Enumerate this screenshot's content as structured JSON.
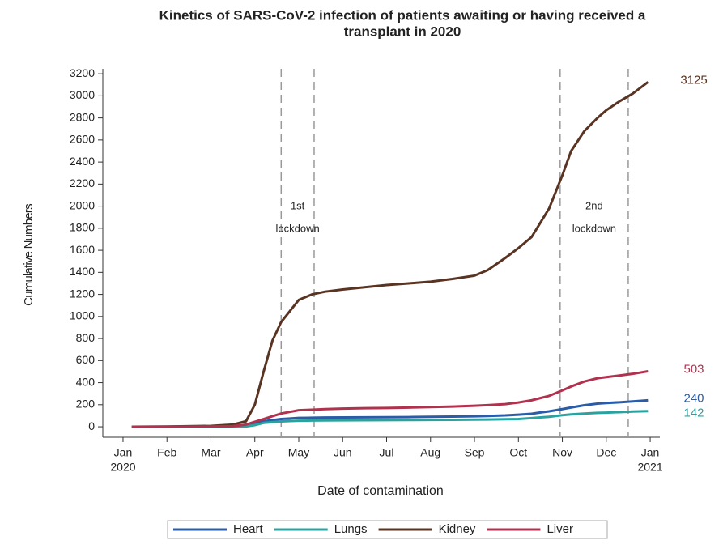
{
  "chart_data": {
    "type": "line",
    "title": "Kinetics of SARS-CoV-2 infection of patients awaiting or having received a transplant in 2020",
    "title_lines": [
      "Kinetics of SARS-CoV-2 infection of patients awaiting or having received a",
      "transplant in 2020"
    ],
    "xlabel": "Date of contamination",
    "ylabel": "Cumulative Numbers",
    "x": [
      0.2,
      1,
      2,
      2.5,
      2.8,
      3.0,
      3.2,
      3.4,
      3.6,
      3.8,
      4.0,
      4.3,
      4.6,
      5,
      5.5,
      6,
      6.5,
      7,
      7.5,
      8,
      8.3,
      8.7,
      9,
      9.3,
      9.5,
      9.7,
      10,
      10.2,
      10.5,
      10.8,
      11,
      11.3,
      11.6,
      11.95
    ],
    "series": [
      {
        "name": "Heart",
        "color": "#2a5ca8",
        "values": [
          0,
          0,
          2,
          4,
          8,
          30,
          50,
          60,
          70,
          75,
          80,
          82,
          84,
          85,
          86,
          87,
          88,
          90,
          92,
          95,
          98,
          103,
          110,
          118,
          130,
          140,
          160,
          175,
          195,
          210,
          215,
          222,
          230,
          240
        ]
      },
      {
        "name": "Lungs",
        "color": "#2aa3a0",
        "values": [
          0,
          0,
          1,
          2,
          3,
          15,
          35,
          42,
          48,
          52,
          55,
          56,
          57,
          58,
          59,
          60,
          61,
          62,
          63,
          65,
          66,
          68,
          70,
          78,
          85,
          90,
          105,
          112,
          120,
          126,
          128,
          133,
          138,
          142
        ]
      },
      {
        "name": "Kidney",
        "color": "#5a3423",
        "values": [
          0,
          2,
          8,
          20,
          50,
          200,
          500,
          780,
          950,
          1050,
          1150,
          1200,
          1225,
          1245,
          1265,
          1285,
          1300,
          1315,
          1340,
          1370,
          1420,
          1530,
          1620,
          1720,
          1850,
          1980,
          2280,
          2500,
          2680,
          2800,
          2870,
          2950,
          3020,
          3125
        ]
      },
      {
        "name": "Liver",
        "color": "#b0324f",
        "values": [
          0,
          1,
          3,
          5,
          20,
          45,
          70,
          95,
          120,
          135,
          150,
          155,
          160,
          165,
          168,
          170,
          174,
          178,
          183,
          190,
          196,
          205,
          220,
          240,
          260,
          280,
          330,
          365,
          410,
          440,
          450,
          465,
          480,
          503
        ]
      }
    ],
    "xlim": [
      -0.46,
      12.22
    ],
    "xticks": [
      {
        "value": 0,
        "label": [
          "Jan",
          "2020"
        ]
      },
      {
        "value": 1,
        "label": [
          "Feb"
        ]
      },
      {
        "value": 2,
        "label": [
          "Mar"
        ]
      },
      {
        "value": 3,
        "label": [
          "Apr"
        ]
      },
      {
        "value": 4,
        "label": [
          "May"
        ]
      },
      {
        "value": 5,
        "label": [
          "Jun"
        ]
      },
      {
        "value": 6,
        "label": [
          "Jul"
        ]
      },
      {
        "value": 7,
        "label": [
          "Aug"
        ]
      },
      {
        "value": 8,
        "label": [
          "Sep"
        ]
      },
      {
        "value": 9,
        "label": [
          "Oct"
        ]
      },
      {
        "value": 10,
        "label": [
          "Nov"
        ]
      },
      {
        "value": 11,
        "label": [
          "Dec"
        ]
      },
      {
        "value": 12,
        "label": [
          "Jan",
          "2021"
        ]
      }
    ],
    "ylim": [
      -95,
      3245
    ],
    "yticks": [
      0,
      200,
      400,
      600,
      800,
      1000,
      1200,
      1400,
      1600,
      1800,
      2000,
      2200,
      2400,
      2600,
      2800,
      3000,
      3200
    ],
    "lockdowns": [
      {
        "label": [
          "1st",
          "lockdown"
        ],
        "start": 3.6,
        "end": 4.35
      },
      {
        "label": [
          "2nd",
          "lockdown"
        ],
        "start": 9.95,
        "end": 11.5
      }
    ],
    "legend": "bottom"
  }
}
